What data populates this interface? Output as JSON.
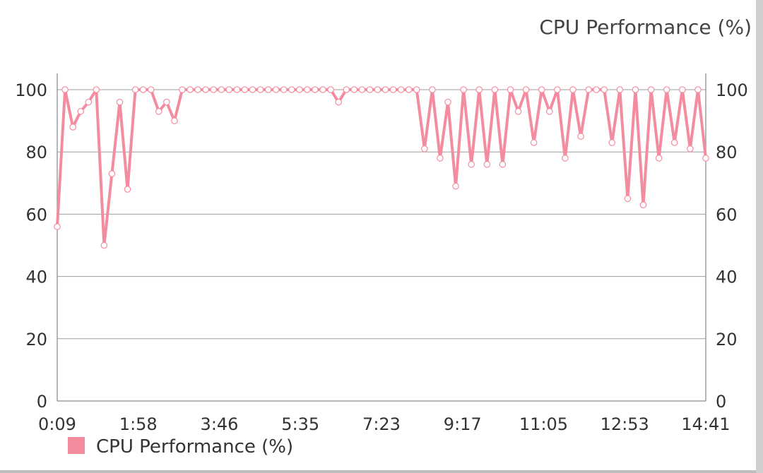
{
  "chart_data": {
    "type": "line",
    "title": "CPU Performance (%)",
    "series": [
      {
        "name": "CPU Performance (%)",
        "color": "#f48ca0",
        "values": [
          56,
          100,
          88,
          93,
          96,
          100,
          50,
          73,
          96,
          68,
          100,
          100,
          100,
          93,
          96,
          90,
          100,
          100,
          100,
          100,
          100,
          100,
          100,
          100,
          100,
          100,
          100,
          100,
          100,
          100,
          100,
          100,
          100,
          100,
          100,
          100,
          96,
          100,
          100,
          100,
          100,
          100,
          100,
          100,
          100,
          100,
          100,
          81,
          100,
          78,
          96,
          69,
          100,
          76,
          100,
          76,
          100,
          76,
          100,
          93,
          100,
          83,
          100,
          93,
          100,
          78,
          100,
          85,
          100,
          100,
          100,
          83,
          100,
          65,
          100,
          63,
          100,
          78,
          100,
          83,
          100,
          81,
          100,
          78
        ]
      }
    ],
    "x_start_seconds": 9,
    "x_end_seconds": 881,
    "x_tick_labels": [
      "0:09",
      "1:58",
      "3:46",
      "5:35",
      "7:23",
      "9:17",
      "11:05",
      "12:53",
      "14:41"
    ],
    "y_tick_labels": [
      "0",
      "20",
      "40",
      "60",
      "80",
      "100"
    ],
    "ylim": [
      0,
      100
    ],
    "grid": true,
    "legend": {
      "position": "bottom-left",
      "label": "CPU Performance (%)"
    }
  }
}
